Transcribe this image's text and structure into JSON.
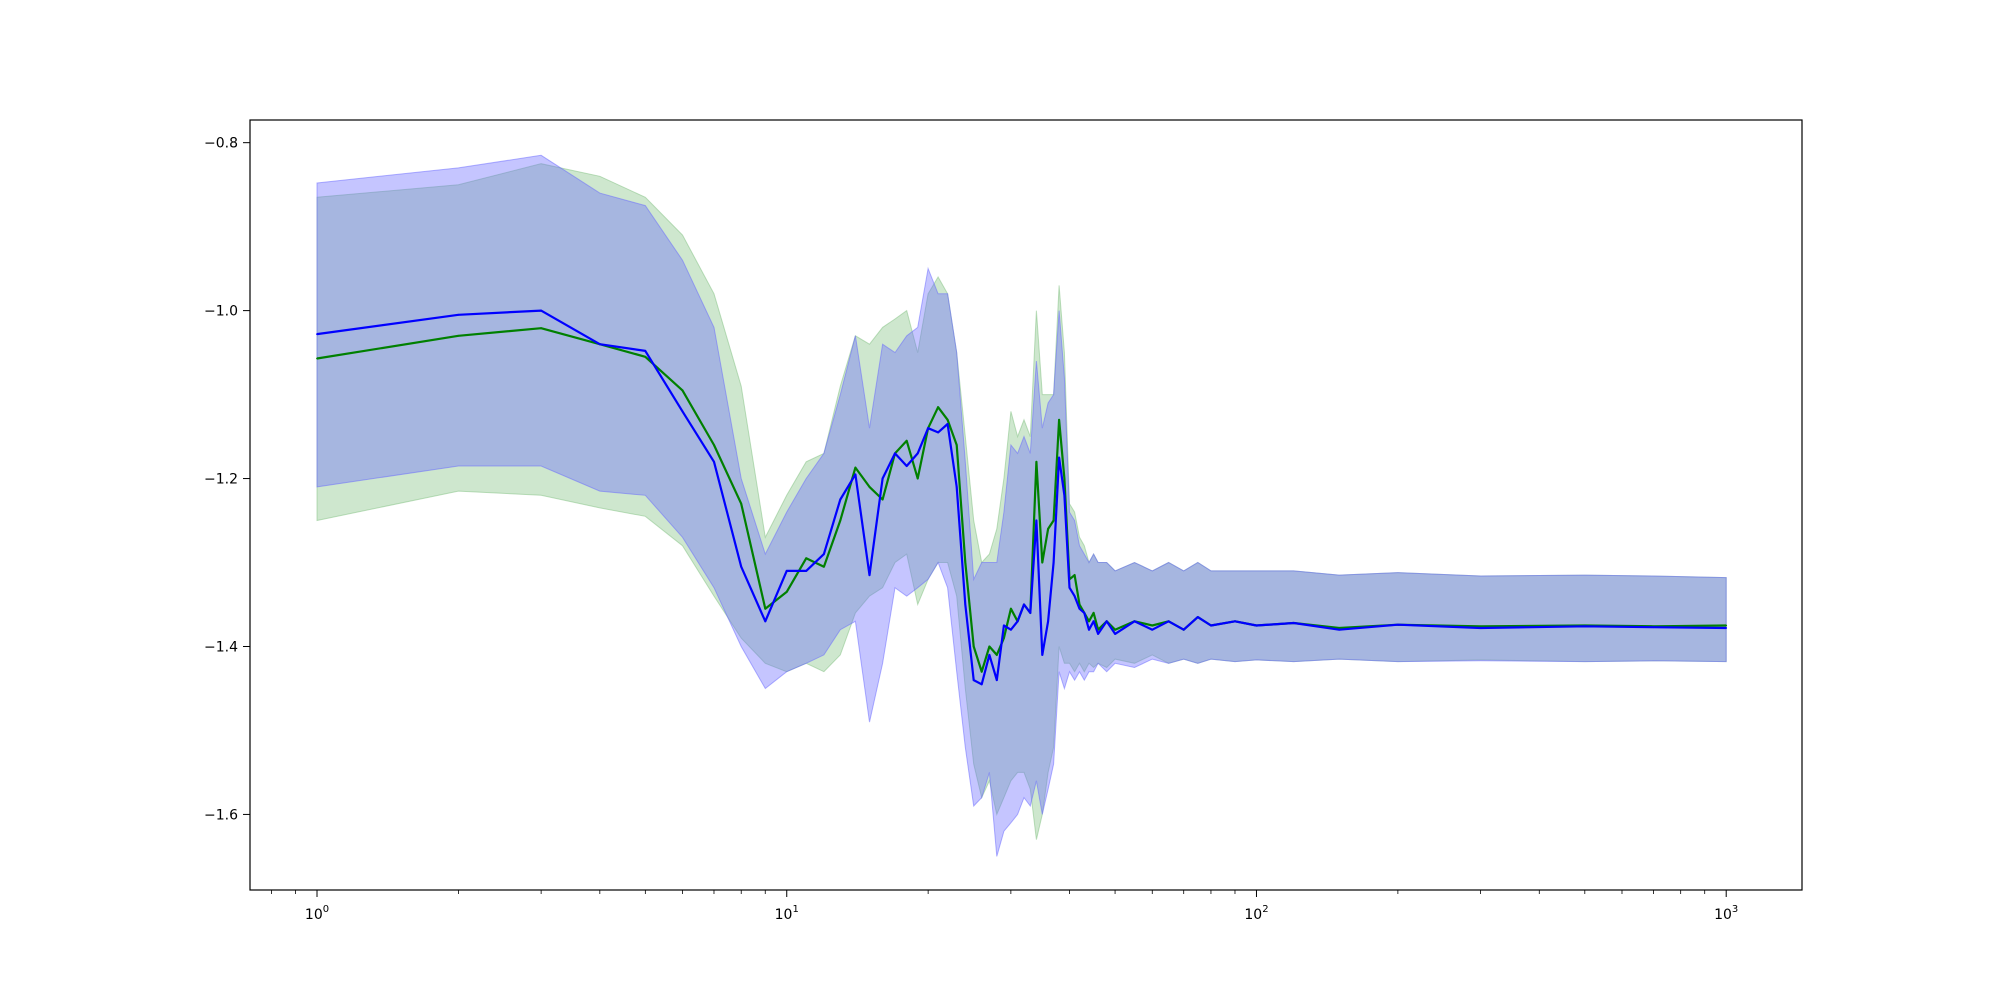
{
  "chart_data": {
    "type": "line",
    "title": "",
    "xlabel": "",
    "ylabel": "",
    "x_scale": "log",
    "xlim": [
      0.72,
      1450
    ],
    "ylim": [
      -1.69,
      -0.773
    ],
    "grid": false,
    "legend": "none",
    "x_ticks": [
      {
        "value": 1,
        "base": "10",
        "exp": "0"
      },
      {
        "value": 10,
        "base": "10",
        "exp": "1"
      },
      {
        "value": 100,
        "base": "10",
        "exp": "2"
      },
      {
        "value": 1000,
        "base": "10",
        "exp": "3"
      }
    ],
    "y_ticks": [
      {
        "value": -0.8,
        "label": "−0.8"
      },
      {
        "value": -1.0,
        "label": "−1.0"
      },
      {
        "value": -1.2,
        "label": "−1.2"
      },
      {
        "value": -1.4,
        "label": "−1.4"
      },
      {
        "value": -1.6,
        "label": "−1.6"
      }
    ],
    "series": [
      {
        "color": "#008000",
        "band_color": "#7fbf7f",
        "x": [
          1,
          2,
          3,
          4,
          5,
          6,
          7,
          8,
          9,
          10,
          11,
          12,
          13,
          14,
          15,
          16,
          17,
          18,
          19,
          20,
          21,
          22,
          23,
          24,
          25,
          26,
          27,
          28,
          29,
          30,
          31,
          32,
          33,
          34,
          35,
          36,
          37,
          38,
          39,
          40,
          41,
          42,
          43,
          44,
          45,
          46,
          48,
          50,
          55,
          60,
          65,
          70,
          75,
          80,
          90,
          100,
          120,
          150,
          200,
          300,
          500,
          700,
          1000
        ],
        "y": [
          -1.057,
          -1.03,
          -1.021,
          -1.04,
          -1.055,
          -1.095,
          -1.16,
          -1.23,
          -1.355,
          -1.335,
          -1.295,
          -1.305,
          -1.25,
          -1.187,
          -1.21,
          -1.225,
          -1.17,
          -1.155,
          -1.2,
          -1.14,
          -1.115,
          -1.13,
          -1.16,
          -1.3,
          -1.4,
          -1.43,
          -1.4,
          -1.41,
          -1.39,
          -1.355,
          -1.37,
          -1.35,
          -1.36,
          -1.18,
          -1.3,
          -1.26,
          -1.25,
          -1.13,
          -1.2,
          -1.32,
          -1.315,
          -1.35,
          -1.36,
          -1.37,
          -1.36,
          -1.38,
          -1.37,
          -1.38,
          -1.37,
          -1.375,
          -1.37,
          -1.38,
          -1.365,
          -1.375,
          -1.37,
          -1.375,
          -1.372,
          -1.378,
          -1.374,
          -1.376,
          -1.375,
          -1.376,
          -1.375
        ],
        "y_lower": [
          -1.25,
          -1.215,
          -1.22,
          -1.235,
          -1.245,
          -1.28,
          -1.34,
          -1.39,
          -1.42,
          -1.43,
          -1.42,
          -1.43,
          -1.41,
          -1.36,
          -1.34,
          -1.33,
          -1.3,
          -1.29,
          -1.35,
          -1.32,
          -1.3,
          -1.3,
          -1.34,
          -1.45,
          -1.54,
          -1.58,
          -1.56,
          -1.6,
          -1.58,
          -1.56,
          -1.55,
          -1.55,
          -1.57,
          -1.63,
          -1.6,
          -1.55,
          -1.52,
          -1.4,
          -1.42,
          -1.42,
          -1.43,
          -1.42,
          -1.43,
          -1.42,
          -1.425,
          -1.42,
          -1.425,
          -1.415,
          -1.42,
          -1.41,
          -1.42,
          -1.415,
          -1.42,
          -1.415,
          -1.418,
          -1.416,
          -1.418,
          -1.415,
          -1.418,
          -1.416,
          -1.418,
          -1.417,
          -1.418
        ],
        "y_upper": [
          -0.865,
          -0.85,
          -0.825,
          -0.84,
          -0.865,
          -0.91,
          -0.98,
          -1.09,
          -1.27,
          -1.22,
          -1.18,
          -1.17,
          -1.09,
          -1.03,
          -1.04,
          -1.02,
          -1.01,
          -1.0,
          -1.05,
          -0.98,
          -0.96,
          -0.98,
          -1.05,
          -1.15,
          -1.25,
          -1.3,
          -1.29,
          -1.26,
          -1.2,
          -1.12,
          -1.15,
          -1.13,
          -1.15,
          -1.0,
          -1.1,
          -1.1,
          -1.1,
          -0.97,
          -1.05,
          -1.23,
          -1.24,
          -1.27,
          -1.28,
          -1.3,
          -1.29,
          -1.3,
          -1.3,
          -1.31,
          -1.3,
          -1.31,
          -1.3,
          -1.31,
          -1.3,
          -1.31,
          -1.31,
          -1.31,
          -1.31,
          -1.315,
          -1.312,
          -1.316,
          -1.315,
          -1.316,
          -1.318
        ]
      },
      {
        "color": "#0000ff",
        "band_color": "#6666ff",
        "x": [
          1,
          2,
          3,
          4,
          5,
          6,
          7,
          8,
          9,
          10,
          11,
          12,
          13,
          14,
          15,
          16,
          17,
          18,
          19,
          20,
          21,
          22,
          23,
          24,
          25,
          26,
          27,
          28,
          29,
          30,
          31,
          32,
          33,
          34,
          35,
          36,
          37,
          38,
          39,
          40,
          41,
          42,
          43,
          44,
          45,
          46,
          48,
          50,
          55,
          60,
          65,
          70,
          75,
          80,
          90,
          100,
          120,
          150,
          200,
          300,
          500,
          700,
          1000
        ],
        "y": [
          -1.028,
          -1.005,
          -1.0,
          -1.04,
          -1.048,
          -1.12,
          -1.18,
          -1.305,
          -1.37,
          -1.31,
          -1.31,
          -1.29,
          -1.225,
          -1.195,
          -1.315,
          -1.2,
          -1.17,
          -1.185,
          -1.17,
          -1.14,
          -1.145,
          -1.135,
          -1.21,
          -1.35,
          -1.44,
          -1.445,
          -1.41,
          -1.44,
          -1.375,
          -1.38,
          -1.37,
          -1.35,
          -1.36,
          -1.25,
          -1.41,
          -1.37,
          -1.3,
          -1.175,
          -1.22,
          -1.33,
          -1.34,
          -1.355,
          -1.36,
          -1.38,
          -1.37,
          -1.385,
          -1.37,
          -1.385,
          -1.37,
          -1.38,
          -1.37,
          -1.38,
          -1.365,
          -1.375,
          -1.37,
          -1.375,
          -1.372,
          -1.38,
          -1.374,
          -1.378,
          -1.376,
          -1.377,
          -1.378
        ],
        "y_lower": [
          -1.21,
          -1.185,
          -1.185,
          -1.215,
          -1.22,
          -1.27,
          -1.33,
          -1.4,
          -1.45,
          -1.43,
          -1.42,
          -1.41,
          -1.38,
          -1.37,
          -1.49,
          -1.42,
          -1.33,
          -1.34,
          -1.33,
          -1.32,
          -1.3,
          -1.33,
          -1.43,
          -1.52,
          -1.59,
          -1.58,
          -1.55,
          -1.65,
          -1.62,
          -1.61,
          -1.6,
          -1.58,
          -1.59,
          -1.56,
          -1.6,
          -1.57,
          -1.54,
          -1.43,
          -1.45,
          -1.43,
          -1.44,
          -1.43,
          -1.44,
          -1.43,
          -1.43,
          -1.42,
          -1.43,
          -1.42,
          -1.425,
          -1.415,
          -1.42,
          -1.415,
          -1.42,
          -1.415,
          -1.418,
          -1.416,
          -1.418,
          -1.415,
          -1.418,
          -1.417,
          -1.418,
          -1.417,
          -1.418
        ],
        "y_upper": [
          -0.848,
          -0.83,
          -0.815,
          -0.86,
          -0.875,
          -0.94,
          -1.02,
          -1.2,
          -1.29,
          -1.24,
          -1.2,
          -1.17,
          -1.1,
          -1.03,
          -1.14,
          -1.04,
          -1.05,
          -1.03,
          -1.02,
          -0.95,
          -0.98,
          -0.98,
          -1.05,
          -1.18,
          -1.32,
          -1.3,
          -1.3,
          -1.3,
          -1.24,
          -1.16,
          -1.17,
          -1.15,
          -1.17,
          -1.06,
          -1.14,
          -1.11,
          -1.1,
          -1.0,
          -1.08,
          -1.24,
          -1.25,
          -1.28,
          -1.29,
          -1.3,
          -1.29,
          -1.3,
          -1.3,
          -1.31,
          -1.3,
          -1.31,
          -1.3,
          -1.31,
          -1.3,
          -1.31,
          -1.31,
          -1.31,
          -1.31,
          -1.315,
          -1.312,
          -1.316,
          -1.315,
          -1.316,
          -1.318
        ]
      }
    ]
  }
}
